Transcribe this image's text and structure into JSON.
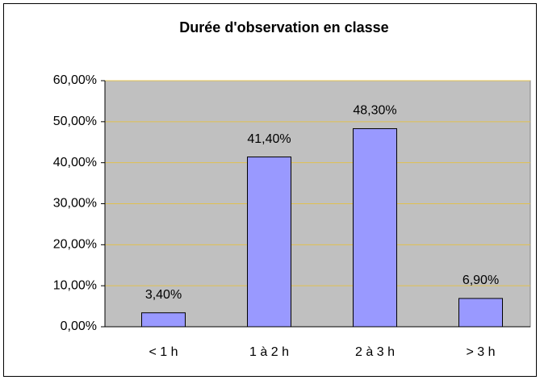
{
  "chart_data": {
    "type": "bar",
    "title": "Durée d'observation en classe",
    "categories": [
      "< 1 h",
      "1 à 2 h",
      "2 à 3 h",
      "> 3 h"
    ],
    "values": [
      3.4,
      41.4,
      48.3,
      6.9
    ],
    "value_labels": [
      "3,40%",
      "41,40%",
      "48,30%",
      "6,90%"
    ],
    "color": "#9999ff",
    "ylim": [
      0,
      60
    ],
    "yticks": [
      {
        "value": 0,
        "label": "0,00%"
      },
      {
        "value": 10,
        "label": "10,00%"
      },
      {
        "value": 20,
        "label": "20,00%"
      },
      {
        "value": 30,
        "label": "30,00%"
      },
      {
        "value": 40,
        "label": "40,00%"
      },
      {
        "value": 50,
        "label": "50,00%"
      },
      {
        "value": 60,
        "label": "60,00%"
      }
    ],
    "grid": true
  }
}
